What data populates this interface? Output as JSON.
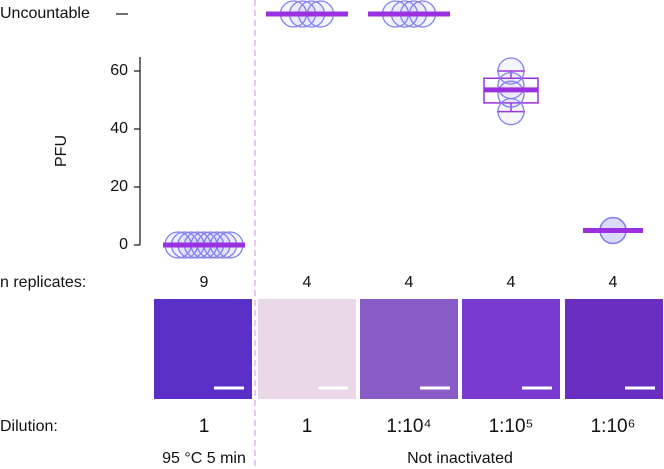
{
  "chart_data": {
    "type": "box",
    "ylabel": "PFU",
    "ylim": [
      0,
      65
    ],
    "yticks": [
      0,
      20,
      40,
      60
    ],
    "uncountable_label": "Uncountable",
    "replicates_label": "n replicates:",
    "dilution_label": "Dilution:",
    "condition_labels": [
      "95 °C 5 min",
      "Not inactivated"
    ],
    "point_color": "#8080f0",
    "box_color": "#9b30e0",
    "groups": [
      {
        "dilution": "1",
        "n": 9,
        "uncountable": false,
        "jitter": true,
        "values": [
          0,
          0,
          0,
          0,
          0,
          0,
          0,
          0,
          0
        ],
        "median": 0
      },
      {
        "dilution": "1",
        "n": 4,
        "uncountable": true,
        "jitter": true
      },
      {
        "dilution": "1:10⁴",
        "n": 4,
        "uncountable": true,
        "jitter": true
      },
      {
        "dilution": "1:10⁵",
        "n": 4,
        "uncountable": false,
        "jitter": false,
        "values": [
          60,
          55,
          52,
          46
        ],
        "median": 53.5,
        "q1": 49,
        "q3": 57.5,
        "whisker_low": 46,
        "whisker_high": 60
      },
      {
        "dilution": "1:10⁶",
        "n": 4,
        "uncountable": false,
        "jitter": false,
        "values": [
          5,
          5,
          5,
          5
        ],
        "median": 5
      }
    ]
  }
}
